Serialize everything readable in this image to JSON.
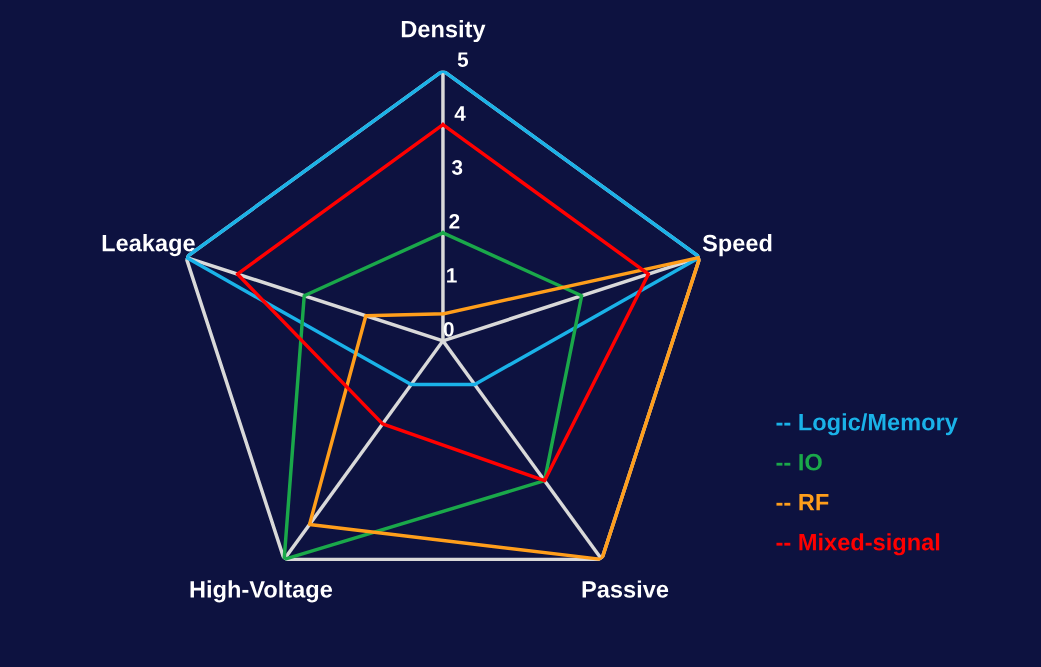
{
  "chart_data": {
    "type": "radar",
    "categories": [
      "Density",
      "Speed",
      "Passive",
      "High-Voltage",
      "Leakage"
    ],
    "ylim": [
      0,
      5
    ],
    "yticks": [
      0,
      1,
      2,
      3,
      4,
      5
    ],
    "grid": true,
    "legend": "right",
    "series": [
      {
        "name": "-- Logic/Memory",
        "color": "#1ab2e8",
        "values": [
          5,
          5,
          1,
          1,
          5
        ]
      },
      {
        "name": "-- IO",
        "color": "#1aa84a",
        "values": [
          2,
          2.7,
          3.2,
          5,
          2.7
        ]
      },
      {
        "name": "-- RF",
        "color": "#ff9e1b",
        "values": [
          0.5,
          5,
          5,
          4.2,
          1.5
        ]
      },
      {
        "name": "-- Mixed-signal",
        "color": "#ff0000",
        "values": [
          4,
          4,
          3.2,
          1.9,
          4
        ]
      }
    ]
  }
}
